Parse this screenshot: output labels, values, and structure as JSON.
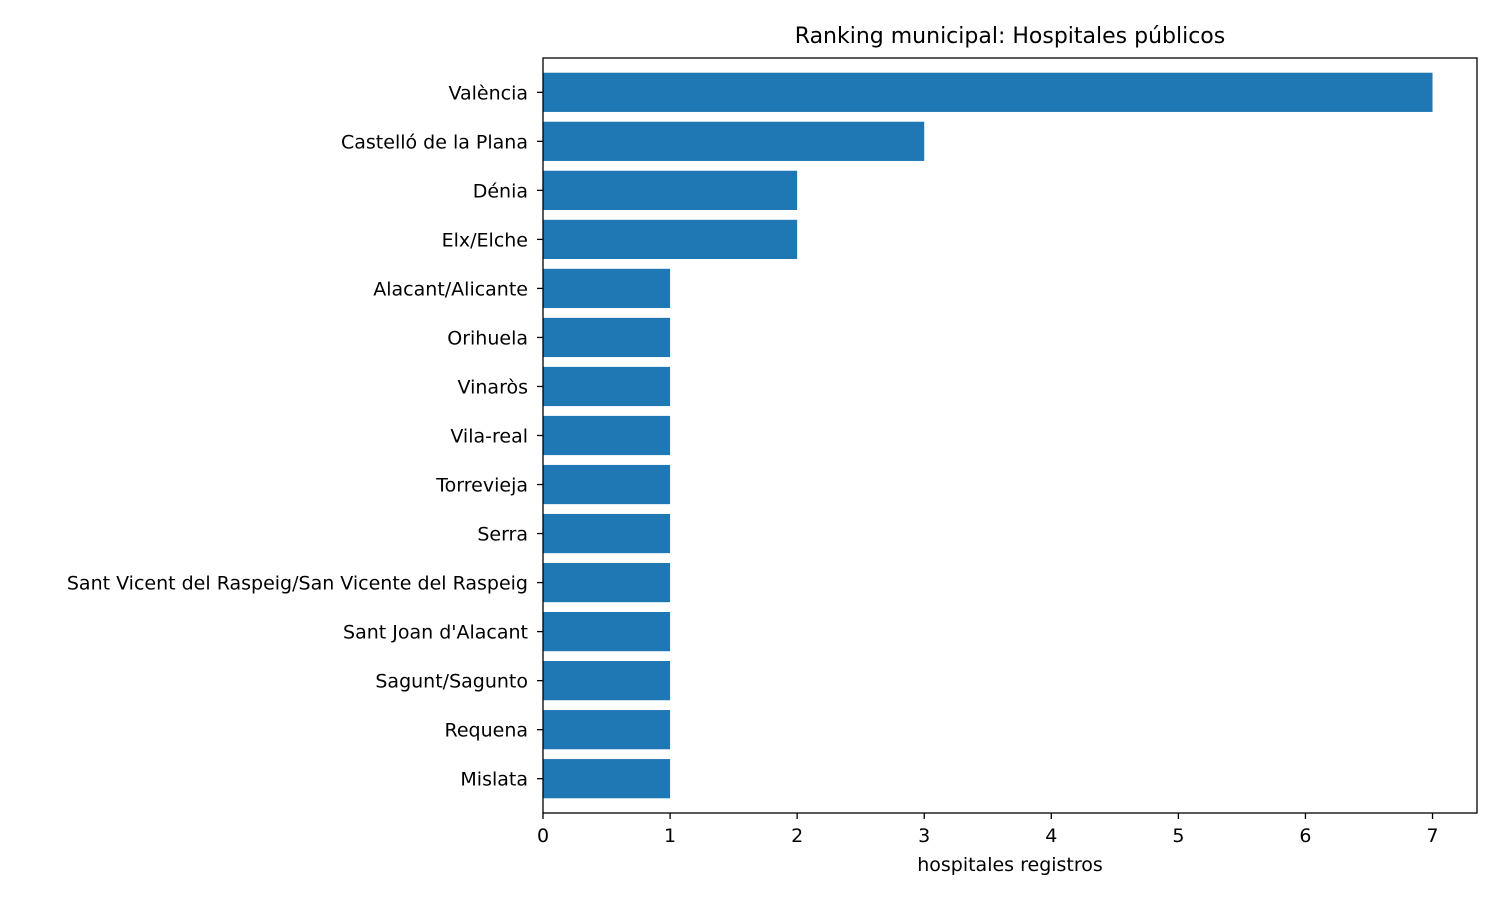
{
  "chart_data": {
    "type": "bar",
    "orientation": "horizontal",
    "title": "Ranking municipal: Hospitales públicos",
    "xlabel": "hospitales registros",
    "ylabel": "",
    "categories": [
      "València",
      "Castelló de la Plana",
      "Dénia",
      "Elx/Elche",
      "Alacant/Alicante",
      "Orihuela",
      "Vinaròs",
      "Vila-real",
      "Torrevieja",
      "Serra",
      "Sant Vicent del Raspeig/San Vicente del Raspeig",
      "Sant Joan d'Alacant",
      "Sagunt/Sagunto",
      "Requena",
      "Mislata"
    ],
    "values": [
      7,
      3,
      2,
      2,
      1,
      1,
      1,
      1,
      1,
      1,
      1,
      1,
      1,
      1,
      1
    ],
    "xlim": [
      0,
      7.35
    ],
    "xticks": [
      0,
      1,
      2,
      3,
      4,
      5,
      6,
      7
    ],
    "grid": false,
    "legend": "none",
    "colors": {
      "bar": "#1f77b4",
      "axis": "#000000",
      "background": "#ffffff"
    }
  }
}
